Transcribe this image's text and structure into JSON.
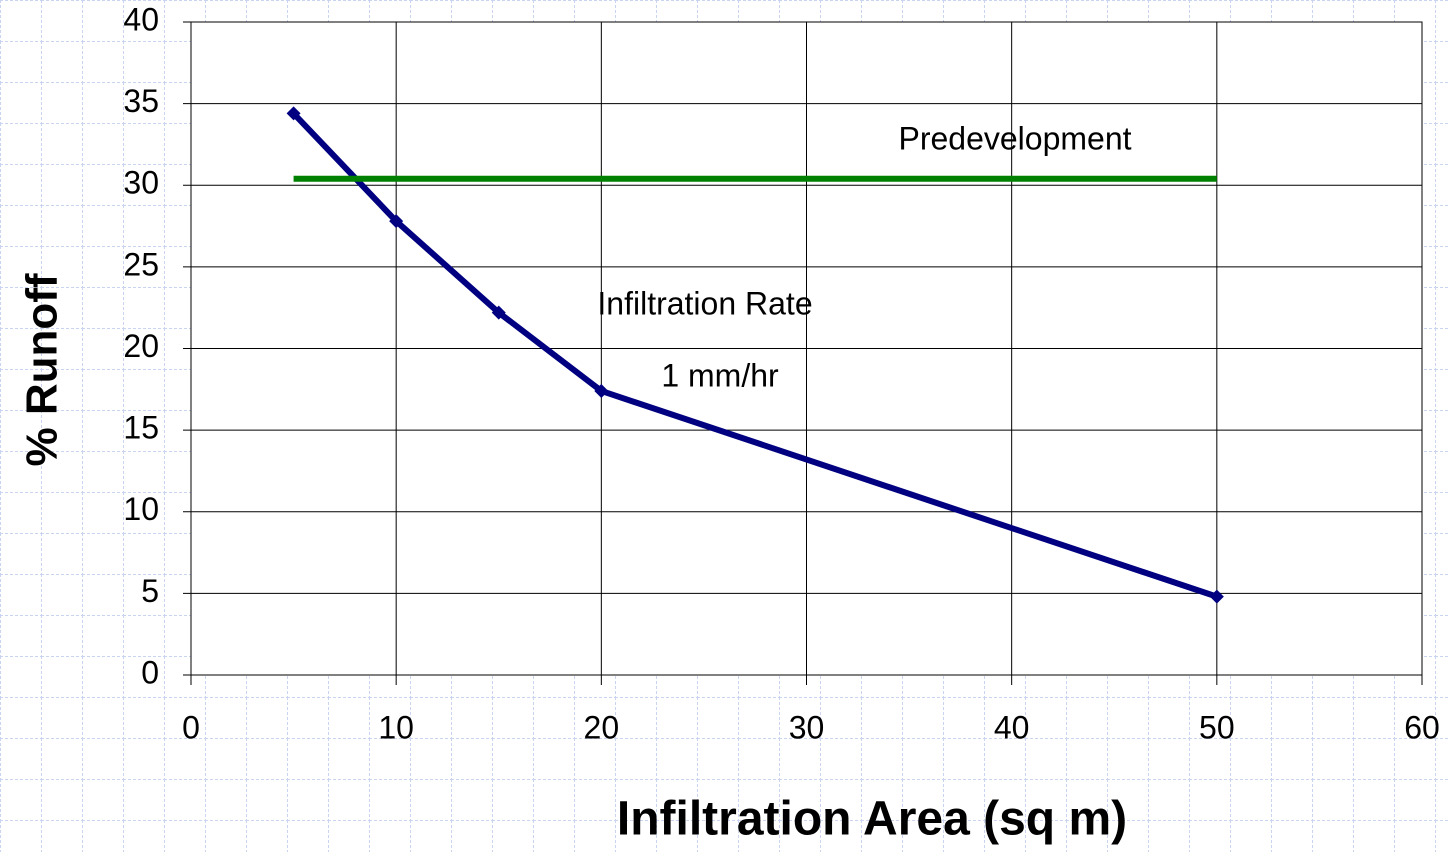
{
  "chart_data": {
    "type": "line",
    "x_label": "Infiltration Area (sq m)",
    "y_label": "% Runoff",
    "annotations": [
      "Infiltration Rate",
      "1 mm/hr"
    ],
    "series": [
      {
        "color": "#000080",
        "x": [
          5,
          10,
          15,
          20,
          50
        ],
        "values": [
          34.4,
          27.8,
          22.2,
          17.4,
          4.8
        ]
      },
      {
        "name": "Predevelopment",
        "color": "#008000",
        "x": [
          5,
          50
        ],
        "values": [
          30.4,
          30.4
        ]
      }
    ],
    "xlim": [
      0,
      60
    ],
    "xticks": [
      0,
      10,
      20,
      30,
      40,
      50,
      60
    ],
    "ylim": [
      0,
      40
    ],
    "yticks": [
      0,
      5,
      10,
      15,
      20,
      25,
      30,
      35,
      40
    ],
    "grid": true
  }
}
